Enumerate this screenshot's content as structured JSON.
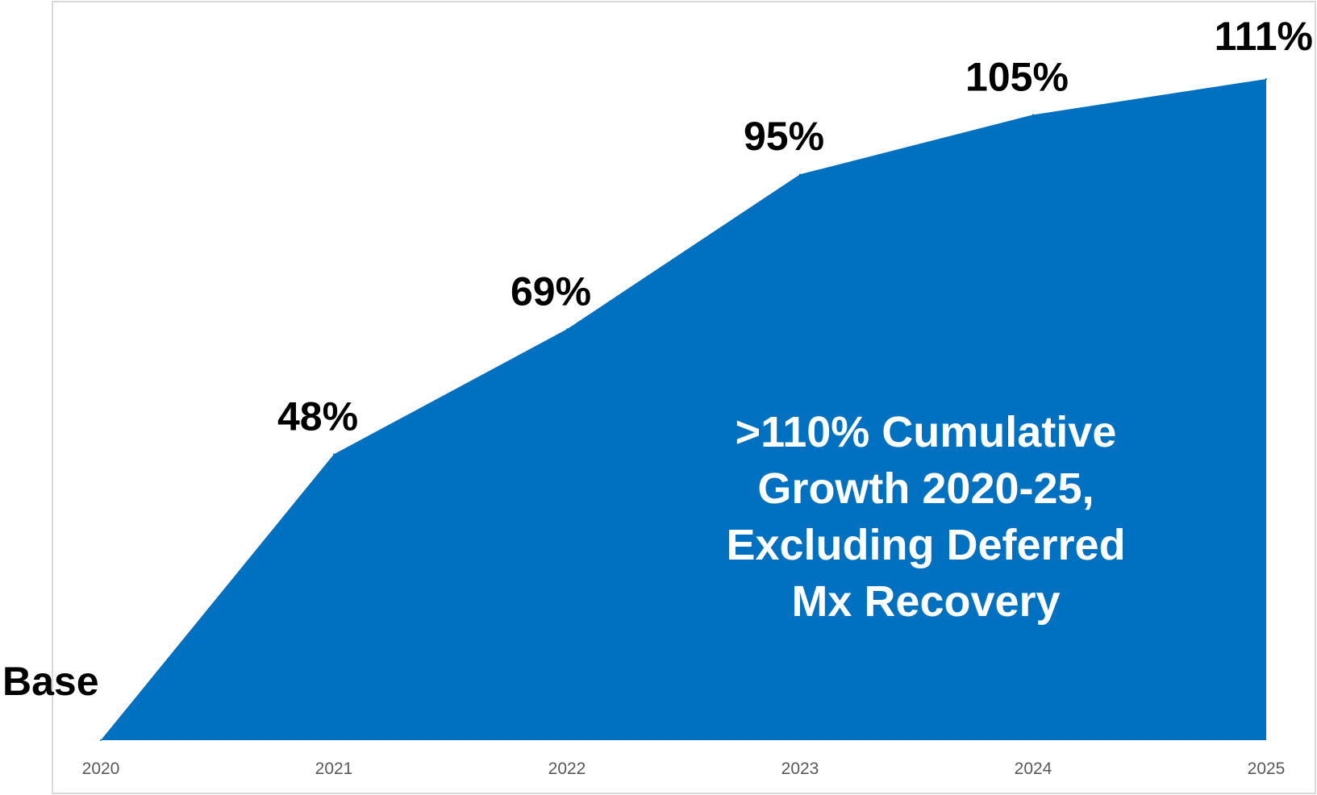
{
  "chart_data": {
    "type": "area",
    "title": "",
    "xlabel": "",
    "ylabel": "",
    "categories": [
      "2020",
      "2021",
      "2022",
      "2023",
      "2024",
      "2025"
    ],
    "values": [
      0,
      48,
      69,
      95,
      105,
      111
    ],
    "data_labels": [
      "Base",
      "48%",
      "69%",
      "95%",
      "105%",
      "111%"
    ],
    "ylim": [
      0,
      111
    ],
    "grid": false,
    "legend": "none",
    "fill_color": "#0070C0",
    "annotation": [
      ">110% Cumulative",
      "Growth 2020-25,",
      "Excluding Deferred",
      "Mx Recovery"
    ]
  }
}
